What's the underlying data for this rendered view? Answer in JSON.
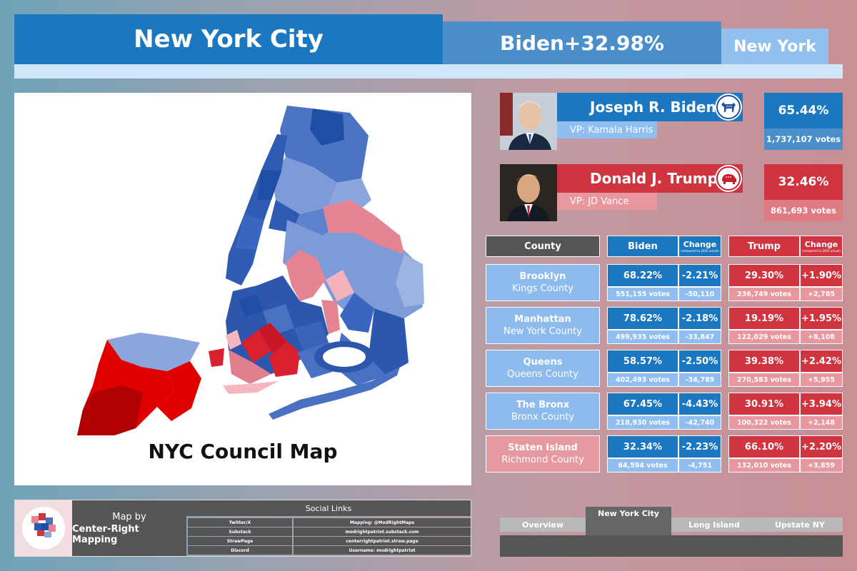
{
  "header": {
    "title": "New York City",
    "margin": "Biden+32.98%",
    "state": "New York"
  },
  "map": {
    "title": "NYC Council Map"
  },
  "candidates": [
    {
      "name": "Joseph R. Biden",
      "vp": "VP: Kamala Harris",
      "pct": "65.44%",
      "votes": "1,737,107 votes",
      "party": "democrat",
      "icon": "donkey-icon"
    },
    {
      "name": "Donald J. Trump",
      "vp": "VP: JD Vance",
      "pct": "32.46%",
      "votes": "861,693 votes",
      "party": "republican",
      "icon": "elephant-icon"
    }
  ],
  "table": {
    "headers": {
      "county": "County",
      "biden": "Biden",
      "change": "Change",
      "change_note": "(compared to 2024 actual)",
      "trump": "Trump"
    },
    "rows": [
      {
        "name": "Brooklyn",
        "full": "Kings County",
        "biden_pct": "68.22%",
        "biden_change": "-2.21%",
        "biden_votes": "551,155 votes",
        "biden_vchange": "-50,110",
        "trump_pct": "29.30%",
        "trump_change": "+1.90%",
        "trump_votes": "236,749 votes",
        "trump_vchange": "+2,785",
        "winner": "biden"
      },
      {
        "name": "Manhattan",
        "full": "New York County",
        "biden_pct": "78.62%",
        "biden_change": "-2.18%",
        "biden_votes": "499,935 votes",
        "biden_vchange": "-33,847",
        "trump_pct": "19.19%",
        "trump_change": "+1.95%",
        "trump_votes": "122,029 votes",
        "trump_vchange": "+8,108",
        "winner": "biden"
      },
      {
        "name": "Queens",
        "full": "Queens County",
        "biden_pct": "58.57%",
        "biden_change": "-2.50%",
        "biden_votes": "402,493 votes",
        "biden_vchange": "-34,789",
        "trump_pct": "39.38%",
        "trump_change": "+2.42%",
        "trump_votes": "270,583 votes",
        "trump_vchange": "+5,955",
        "winner": "biden"
      },
      {
        "name": "The Bronx",
        "full": "Bronx County",
        "biden_pct": "67.45%",
        "biden_change": "-4.43%",
        "biden_votes": "218,930 votes",
        "biden_vchange": "-42,740",
        "trump_pct": "30.91%",
        "trump_change": "+3.94%",
        "trump_votes": "100,322 votes",
        "trump_vchange": "+2,148",
        "winner": "biden"
      },
      {
        "name": "Staten Island",
        "full": "Richmond County",
        "biden_pct": "32.34%",
        "biden_change": "-2.23%",
        "biden_votes": "64,594 votes",
        "biden_vchange": "-4,751",
        "trump_pct": "66.10%",
        "trump_change": "+2.20%",
        "trump_votes": "132,010 votes",
        "trump_vchange": "+3,859",
        "winner": "trump"
      }
    ]
  },
  "footer": {
    "logo_text": "Center-Right Mapping",
    "map_by": "Map by",
    "author": "Center-Right Mapping",
    "links_title": "Social Links",
    "links": [
      {
        "label": "Twitter/X",
        "value": "Mapping: @ModRightMaps"
      },
      {
        "label": "Substack",
        "value": "modrightpatriot.substack.com"
      },
      {
        "label": "StrawPage",
        "value": "centerrightpatriot.straw.page"
      },
      {
        "label": "Discord",
        "value": "Username: modrightpatriot"
      }
    ]
  },
  "tabs": {
    "overview": "Overview",
    "nyc": "New York City",
    "long_island": "Long Island",
    "upstate": "Upstate NY"
  },
  "colors": {
    "dem_dark": "#1b78c0",
    "dem_mid": "#4a8fca",
    "dem_light": "#90bef0",
    "rep_dark": "#d0343f",
    "rep_light": "#e8979e",
    "county_dem": "#8dbbee",
    "county_rep": "#e69aa0"
  }
}
